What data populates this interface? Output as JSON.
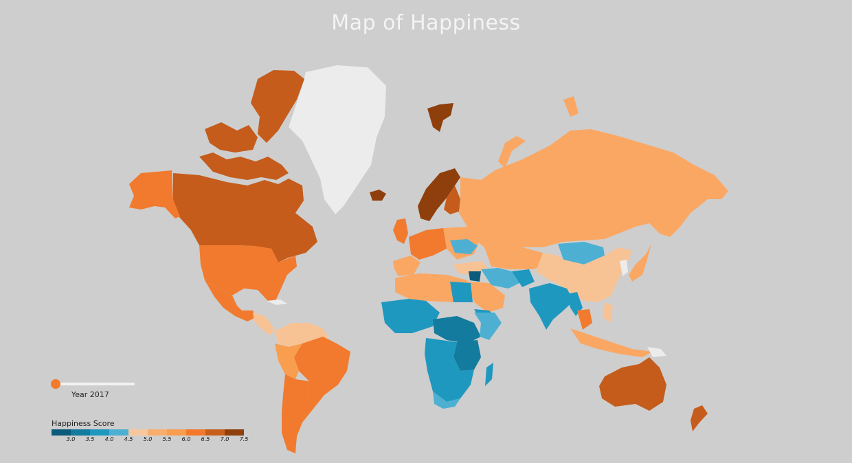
{
  "title": "Map of Happiness",
  "slider": {
    "year_label": "Year 2017",
    "value": 2017,
    "position": 0.0
  },
  "legend": {
    "title": "Happiness Score",
    "ticks": [
      "3.0",
      "3.5",
      "4.0",
      "4.5",
      "5.0",
      "5.5",
      "6.0",
      "6.5",
      "7.0",
      "7.5"
    ],
    "colors": [
      "#0b5b7d",
      "#137b9e",
      "#1f98bf",
      "#4db0d2",
      "#f7c89f",
      "#f9ae6e",
      "#f99d4f",
      "#f3792d",
      "#c75f1c",
      "#8e3f0c"
    ]
  },
  "colors": {
    "background": "#cecece",
    "no_data": "#ececec",
    "score_7_5": "#8e3f0c",
    "score_7_0": "#c55c1b",
    "score_6_5": "#f17a2e",
    "score_6_0": "#f99d4f",
    "score_5_5": "#faa764",
    "score_5_0": "#f8c394",
    "score_4_5": "#4db0d2",
    "score_4_0": "#1f98bf",
    "score_3_5": "#137b9e",
    "score_3_0": "#0b5b7d"
  }
}
